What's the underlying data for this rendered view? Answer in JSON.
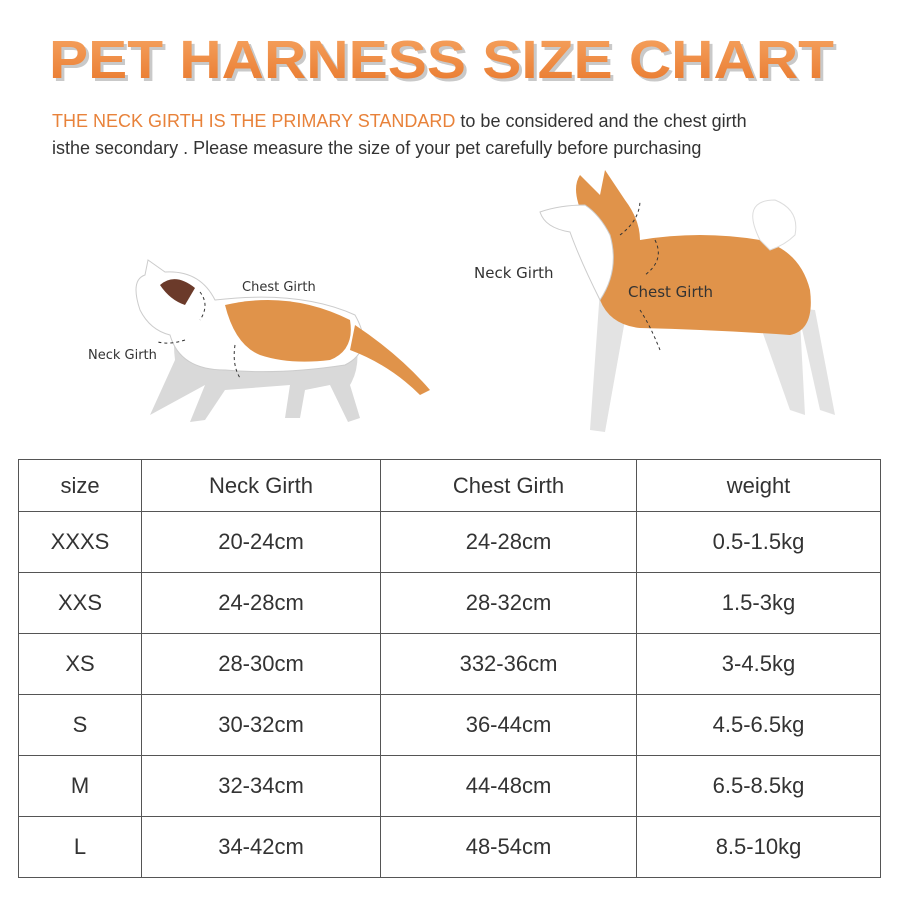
{
  "header": {
    "title": "PET HARNESS SIZE CHART",
    "intro": {
      "highlight": "THE NECK GIRTH IS THE PRIMARY STANDARD",
      "lines": [
        "to be considered and the chest girth",
        "isthe secondary . Please measure the size of your pet carefully before purchasing"
      ]
    }
  },
  "illustrations": {
    "cat": {
      "chest_label": "Chest Girth",
      "neck_label": "Neck Girth"
    },
    "dog": {
      "neck_label": "Neck  Girth",
      "chest_label": "Chest Girth"
    }
  },
  "table": {
    "columns": [
      "size",
      "Neck Girth",
      "Chest Girth",
      "weight"
    ],
    "rows": [
      [
        "XXXS",
        "20-24cm",
        "24-28cm",
        "0.5-1.5kg"
      ],
      [
        "XXS",
        "24-28cm",
        "28-32cm",
        "1.5-3kg"
      ],
      [
        "XS",
        "28-30cm",
        "332-36cm",
        "3-4.5kg"
      ],
      [
        "S",
        "30-32cm",
        "36-44cm",
        "4.5-6.5kg"
      ],
      [
        "M",
        "32-34cm",
        "44-48cm",
        "6.5-8.5kg"
      ],
      [
        "L",
        "34-42cm",
        "48-54cm",
        "8.5-10kg"
      ]
    ]
  }
}
